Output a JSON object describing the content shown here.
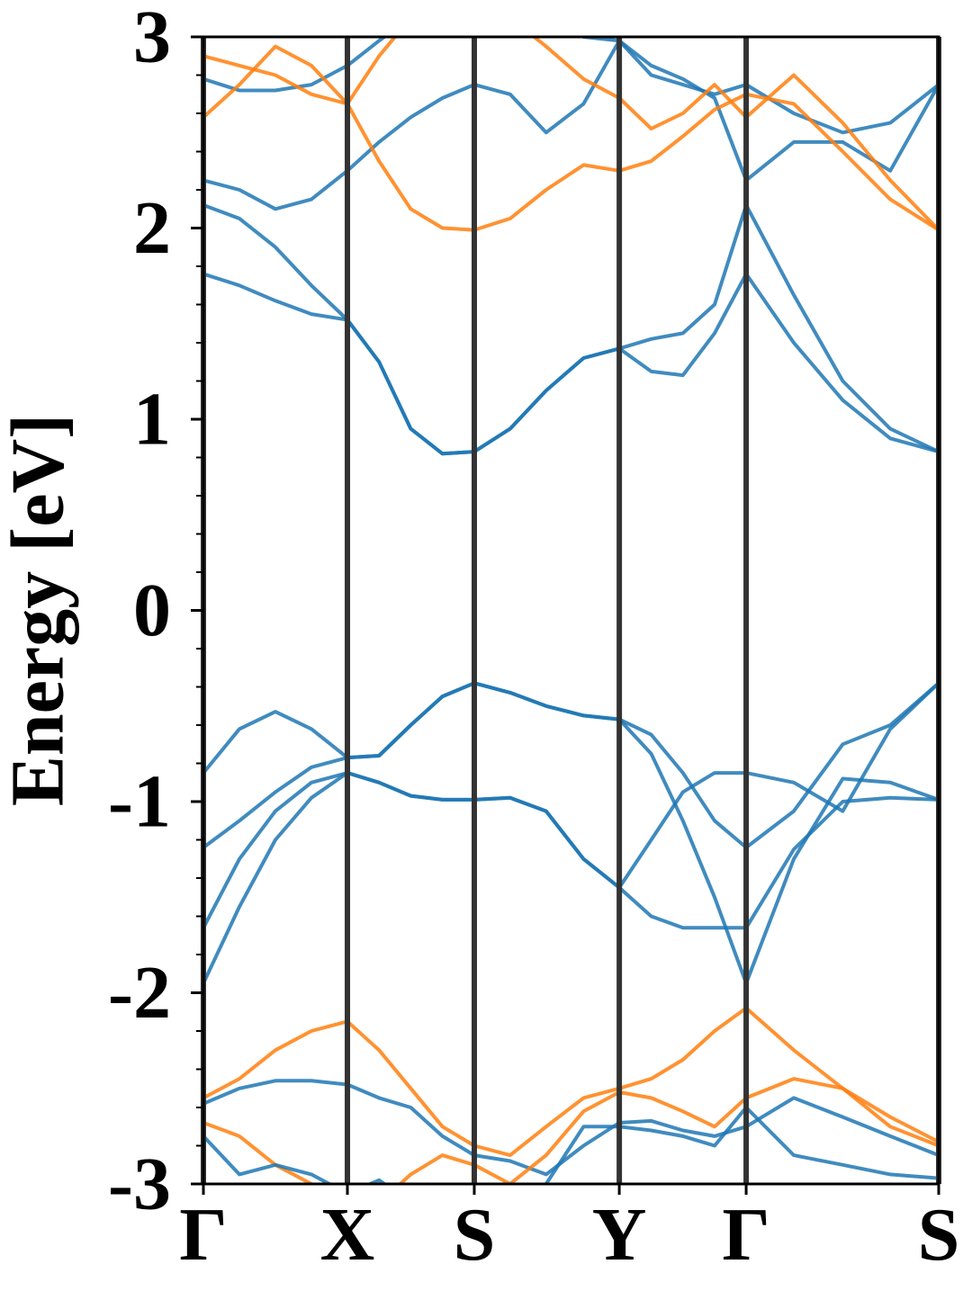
{
  "chart_data": {
    "type": "line",
    "y_label": "Energy [eV]",
    "x": [
      0,
      0.25,
      0.5,
      0.75,
      1,
      1.22,
      1.44,
      1.66,
      1.881,
      2.13,
      2.38,
      2.64,
      2.888,
      3.11,
      3.33,
      3.55,
      3.769,
      4.1,
      4.44,
      4.77,
      5.106
    ],
    "xlim": [
      0,
      5.106
    ],
    "xticks": [
      {
        "value": 0,
        "label": "Γ"
      },
      {
        "value": 1,
        "label": "X"
      },
      {
        "value": 1.881,
        "label": "S"
      },
      {
        "value": 2.888,
        "label": "Y"
      },
      {
        "value": 3.769,
        "label": "Γ"
      },
      {
        "value": 5.106,
        "label": "S"
      }
    ],
    "ylim": [
      -3,
      3
    ],
    "yticks": [
      -3,
      -2,
      -1,
      0,
      1,
      2,
      3
    ],
    "series": [
      {
        "color": "#1f77b4",
        "values": [
          1.76,
          1.7,
          1.62,
          1.55,
          1.52,
          1.3,
          0.95,
          0.82,
          0.83,
          0.95,
          1.15,
          1.32,
          1.37,
          1.25,
          1.23,
          1.45,
          1.76,
          1.4,
          1.1,
          0.9,
          0.83
        ]
      },
      {
        "color": "#1f77b4",
        "values": [
          2.12,
          2.05,
          1.9,
          1.7,
          1.52,
          1.3,
          0.95,
          0.82,
          0.83,
          0.95,
          1.15,
          1.32,
          1.37,
          1.42,
          1.45,
          1.6,
          2.12,
          1.65,
          1.2,
          0.95,
          0.83
        ]
      },
      {
        "color": "#1f77b4",
        "values": [
          2.25,
          2.2,
          2.1,
          2.15,
          2.3,
          2.45,
          2.58,
          2.68,
          2.75,
          2.7,
          2.5,
          2.65,
          2.98,
          2.85,
          2.78,
          2.68,
          2.25,
          2.45,
          2.45,
          2.3,
          2.75
        ]
      },
      {
        "color": "#1f77b4",
        "values": [
          2.78,
          2.72,
          2.72,
          2.75,
          2.85,
          2.98,
          3.1,
          3.2,
          3.2,
          3.2,
          3.1,
          3.0,
          2.98,
          2.8,
          2.75,
          2.7,
          2.75,
          2.6,
          2.5,
          2.55,
          2.75
        ]
      },
      {
        "color": "#ff7f0e",
        "values": [
          2.9,
          2.85,
          2.8,
          2.7,
          2.65,
          2.35,
          2.1,
          2.0,
          1.99,
          2.05,
          2.2,
          2.33,
          2.3,
          2.35,
          2.48,
          2.62,
          2.7,
          2.65,
          2.4,
          2.15,
          1.99
        ]
      },
      {
        "color": "#ff7f0e",
        "values": [
          2.58,
          2.75,
          2.95,
          2.85,
          2.65,
          2.9,
          3.1,
          3.2,
          3.2,
          3.1,
          2.95,
          2.78,
          2.68,
          2.52,
          2.6,
          2.75,
          2.58,
          2.8,
          2.55,
          2.25,
          1.99
        ]
      },
      {
        "color": "#1f77b4",
        "values": [
          -0.85,
          -0.62,
          -0.53,
          -0.62,
          -0.77,
          -0.76,
          -0.6,
          -0.45,
          -0.38,
          -0.43,
          -0.5,
          -0.55,
          -0.57,
          -0.75,
          -1.1,
          -1.5,
          -1.95,
          -1.3,
          -0.88,
          -0.9,
          -0.99
        ]
      },
      {
        "color": "#1f77b4",
        "values": [
          -1.24,
          -1.1,
          -0.95,
          -0.82,
          -0.77,
          -0.76,
          -0.6,
          -0.45,
          -0.38,
          -0.43,
          -0.5,
          -0.55,
          -0.57,
          -0.65,
          -0.85,
          -1.1,
          -1.24,
          -1.05,
          -0.7,
          -0.6,
          -0.38
        ]
      },
      {
        "color": "#1f77b4",
        "values": [
          -1.66,
          -1.3,
          -1.05,
          -0.9,
          -0.85,
          -0.9,
          -0.97,
          -0.99,
          -0.99,
          -0.98,
          -1.05,
          -1.3,
          -1.45,
          -1.6,
          -1.66,
          -1.66,
          -1.66,
          -1.25,
          -1.0,
          -0.98,
          -0.99
        ]
      },
      {
        "color": "#1f77b4",
        "values": [
          -1.95,
          -1.55,
          -1.2,
          -0.98,
          -0.85,
          -0.9,
          -0.97,
          -0.99,
          -0.99,
          -0.98,
          -1.05,
          -1.3,
          -1.45,
          -1.2,
          -0.95,
          -0.85,
          -0.85,
          -0.9,
          -1.05,
          -0.62,
          -0.38
        ]
      },
      {
        "color": "#ff7f0e",
        "values": [
          -2.55,
          -2.45,
          -2.3,
          -2.2,
          -2.15,
          -2.3,
          -2.5,
          -2.7,
          -2.8,
          -2.85,
          -2.7,
          -2.55,
          -2.5,
          -2.45,
          -2.35,
          -2.2,
          -2.08,
          -2.3,
          -2.5,
          -2.7,
          -2.8
        ]
      },
      {
        "color": "#1f77b4",
        "values": [
          -2.58,
          -2.5,
          -2.46,
          -2.46,
          -2.48,
          -2.55,
          -2.6,
          -2.75,
          -2.85,
          -2.88,
          -2.95,
          -2.8,
          -2.68,
          -2.67,
          -2.72,
          -2.75,
          -2.7,
          -2.55,
          -2.65,
          -2.75,
          -2.85
        ]
      },
      {
        "color": "#ff7f0e",
        "values": [
          -2.68,
          -2.75,
          -2.9,
          -3.0,
          -3.05,
          -3.1,
          -2.95,
          -2.85,
          -2.9,
          -3.0,
          -2.85,
          -2.62,
          -2.52,
          -2.55,
          -2.62,
          -2.7,
          -2.55,
          -2.45,
          -2.5,
          -2.65,
          -2.78
        ]
      },
      {
        "color": "#1f77b4",
        "values": [
          -2.75,
          -2.95,
          -2.9,
          -2.95,
          -3.05,
          -2.98,
          -3.1,
          -3.2,
          -3.2,
          -3.1,
          -3.0,
          -2.7,
          -2.7,
          -2.72,
          -2.75,
          -2.8,
          -2.6,
          -2.85,
          -2.9,
          -2.95,
          -2.97
        ]
      }
    ]
  }
}
